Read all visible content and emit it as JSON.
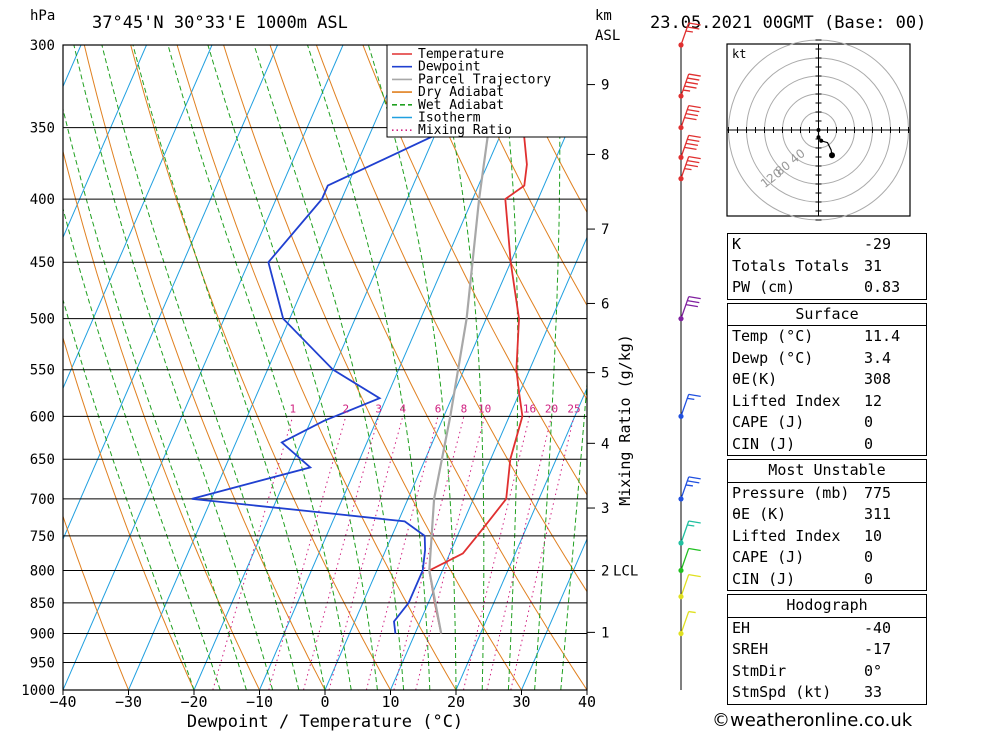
{
  "header": {
    "location": "37°45'N  30°33'E  1000m  ASL",
    "datetime": "23.05.2021  00GMT  (Base: 00)",
    "hpa_label": "hPa",
    "km_label": "km",
    "asl_label": "ASL"
  },
  "axes": {
    "xlabel": "Dewpoint / Temperature (°C)",
    "mixing_label": "Mixing Ratio (g/kg)",
    "x_ticks": [
      "−40",
      "−30",
      "−20",
      "−10",
      "0",
      "10",
      "20",
      "30",
      "40"
    ],
    "p_ticks": [
      "300",
      "350",
      "400",
      "450",
      "500",
      "550",
      "600",
      "650",
      "700",
      "750",
      "800",
      "850",
      "900",
      "950",
      "1000"
    ],
    "km_ticks": [
      {
        "label": "9",
        "p": 323
      },
      {
        "label": "8",
        "p": 368
      },
      {
        "label": "7",
        "p": 423
      },
      {
        "label": "6",
        "p": 486
      },
      {
        "label": "5",
        "p": 553
      },
      {
        "label": "4",
        "p": 631
      },
      {
        "label": "3",
        "p": 712
      },
      {
        "label": "2",
        "p": 800
      },
      {
        "label": "1",
        "p": 898
      }
    ],
    "lcl_label": "LCL",
    "mixing_ratio_labels": [
      "1",
      "2",
      "3",
      "4",
      "6",
      "8",
      "10",
      "16",
      "20",
      "25"
    ]
  },
  "legend": [
    {
      "label": "Temperature",
      "color": "#e03030",
      "style": "solid"
    },
    {
      "label": "Dewpoint",
      "color": "#2040d0",
      "style": "solid"
    },
    {
      "label": "Parcel Trajectory",
      "color": "#a8a8a8",
      "style": "solid"
    },
    {
      "label": "Dry Adiabat",
      "color": "#e08020",
      "style": "solid"
    },
    {
      "label": "Wet Adiabat",
      "color": "#20a020",
      "style": "dashed"
    },
    {
      "label": "Isotherm",
      "color": "#20a0e0",
      "style": "solid"
    },
    {
      "label": "Mixing Ratio",
      "color": "#d02080",
      "style": "dotted"
    }
  ],
  "chart_data": {
    "type": "line",
    "title": "37°45'N  30°33'E  1000m  ASL",
    "xlabel": "Dewpoint / Temperature (°C)",
    "ylabel": "hPa",
    "xlim": [
      -40,
      40
    ],
    "ylim": [
      1000,
      300
    ],
    "y_scale": "log",
    "series": [
      {
        "name": "Temperature",
        "color": "#e03030",
        "points": [
          [
            14,
            900
          ],
          [
            11,
            850
          ],
          [
            8,
            800
          ],
          [
            12,
            775
          ],
          [
            13,
            750
          ],
          [
            14,
            725
          ],
          [
            15,
            700
          ],
          [
            13,
            650
          ],
          [
            12,
            600
          ],
          [
            10,
            575
          ],
          [
            8,
            550
          ],
          [
            5,
            500
          ],
          [
            0,
            450
          ],
          [
            -5,
            400
          ],
          [
            -3,
            390
          ],
          [
            -4,
            375
          ],
          [
            -7,
            350
          ],
          [
            -11,
            314
          ]
        ]
      },
      {
        "name": "Dewpoint",
        "color": "#2040d0",
        "points": [
          [
            7,
            900
          ],
          [
            6,
            880
          ],
          [
            7,
            850
          ],
          [
            7,
            800
          ],
          [
            6,
            770
          ],
          [
            5,
            750
          ],
          [
            1,
            730
          ],
          [
            -10,
            720
          ],
          [
            -33,
            700
          ],
          [
            -17,
            660
          ],
          [
            -23,
            630
          ],
          [
            -18,
            605
          ],
          [
            -11,
            580
          ],
          [
            -20,
            550
          ],
          [
            -31,
            500
          ],
          [
            -37,
            450
          ],
          [
            -33,
            400
          ],
          [
            -33,
            390
          ],
          [
            -18,
            350
          ],
          [
            -14,
            315
          ]
        ]
      },
      {
        "name": "Parcel Trajectory",
        "color": "#a8a8a8",
        "points": [
          [
            14,
            900
          ],
          [
            8,
            800
          ],
          [
            4,
            700
          ],
          [
            1,
            600
          ],
          [
            -3,
            500
          ],
          [
            -9,
            400
          ],
          [
            -16,
            300
          ]
        ]
      }
    ],
    "wind_profile": [
      {
        "p": 300,
        "speed_kt": 25,
        "color": "#e03030"
      },
      {
        "p": 330,
        "speed_kt": 45,
        "color": "#e03030"
      },
      {
        "p": 350,
        "speed_kt": 40,
        "color": "#e03030"
      },
      {
        "p": 370,
        "speed_kt": 40,
        "color": "#e03030"
      },
      {
        "p": 385,
        "speed_kt": 35,
        "color": "#e03030"
      },
      {
        "p": 500,
        "speed_kt": 30,
        "color": "#8020a0"
      },
      {
        "p": 600,
        "speed_kt": 15,
        "color": "#2050e0"
      },
      {
        "p": 700,
        "speed_kt": 25,
        "color": "#2050e0"
      },
      {
        "p": 760,
        "speed_kt": 15,
        "color": "#20c0a0"
      },
      {
        "p": 800,
        "speed_kt": 10,
        "color": "#20c020"
      },
      {
        "p": 840,
        "speed_kt": 10,
        "color": "#e0e020"
      },
      {
        "p": 900,
        "speed_kt": 5,
        "color": "#e0e020"
      }
    ],
    "hodograph": {
      "unit_label": "kt",
      "ring_labels": [
        "40",
        "80",
        "120"
      ],
      "points_kt": [
        [
          0,
          0
        ],
        [
          0,
          -8
        ],
        [
          3,
          -12
        ],
        [
          10,
          -14
        ],
        [
          14,
          -22
        ],
        [
          15,
          -28
        ]
      ]
    }
  },
  "indices": {
    "k": {
      "label": "K",
      "value": "-29"
    },
    "totals": {
      "label": "Totals Totals",
      "value": "31"
    },
    "pw": {
      "label": "PW (cm)",
      "value": "0.83"
    }
  },
  "surface": {
    "title": "Surface",
    "temp": {
      "label": "Temp (°C)",
      "value": "11.4"
    },
    "dewp": {
      "label": "Dewp (°C)",
      "value": "3.4"
    },
    "theta": {
      "label": "θE(K)",
      "value": "308"
    },
    "li": {
      "label": "Lifted Index",
      "value": "12"
    },
    "cape": {
      "label": "CAPE (J)",
      "value": "0"
    },
    "cin": {
      "label": "CIN (J)",
      "value": "0"
    }
  },
  "most_unstable": {
    "title": "Most Unstable",
    "pressure": {
      "label": "Pressure (mb)",
      "value": "775"
    },
    "theta": {
      "label": "θE (K)",
      "value": "311"
    },
    "li": {
      "label": "Lifted Index",
      "value": "10"
    },
    "cape": {
      "label": "CAPE (J)",
      "value": "0"
    },
    "cin": {
      "label": "CIN (J)",
      "value": "0"
    }
  },
  "hodograph_box": {
    "title": "Hodograph",
    "eh": {
      "label": "EH",
      "value": "-40"
    },
    "sreh": {
      "label": "SREH",
      "value": "-17"
    },
    "stmdir": {
      "label": "StmDir",
      "value": "0°"
    },
    "stmspd": {
      "label": "StmSpd (kt)",
      "value": "33"
    }
  },
  "credit": "©weatheronline.co.uk"
}
